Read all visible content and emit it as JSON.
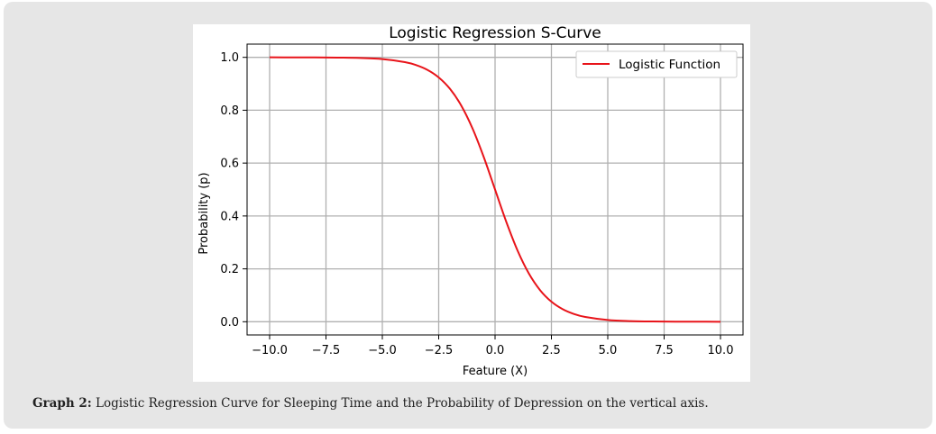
{
  "caption": {
    "label": "Graph 2:",
    "text": "Logistic Regression Curve for Sleeping Time and the Probability of Depression on the vertical axis."
  },
  "chart_data": {
    "type": "line",
    "title": "Logistic Regression S-Curve",
    "xlabel": "Feature (X)",
    "ylabel": "Probability (p)",
    "xlim": [
      -11,
      11
    ],
    "ylim": [
      -0.05,
      1.05
    ],
    "xticks": [
      -10.0,
      -7.5,
      -5.0,
      -2.5,
      0.0,
      2.5,
      5.0,
      7.5,
      10.0
    ],
    "xtick_labels": [
      "−10.0",
      "−7.5",
      "−5.0",
      "−2.5",
      "0.0",
      "2.5",
      "5.0",
      "7.5",
      "10.0"
    ],
    "yticks": [
      0.0,
      0.2,
      0.4,
      0.6,
      0.8,
      1.0
    ],
    "ytick_labels": [
      "0.0",
      "0.2",
      "0.4",
      "0.6",
      "0.8",
      "1.0"
    ],
    "grid": true,
    "legend": "top-right",
    "series": [
      {
        "name": "Logistic Function",
        "color": "#e8141a",
        "x": [
          -10,
          -9,
          -8,
          -7,
          -6,
          -5,
          -4,
          -3.5,
          -3,
          -2.5,
          -2,
          -1.5,
          -1,
          -0.5,
          0,
          0.5,
          1,
          1.5,
          2,
          2.5,
          3,
          3.5,
          4,
          5,
          6,
          7,
          8,
          9,
          10
        ],
        "y": [
          1.0,
          0.9999,
          0.9997,
          0.9991,
          0.9975,
          0.9933,
          0.982,
          0.9707,
          0.9526,
          0.9241,
          0.8808,
          0.8176,
          0.7311,
          0.6225,
          0.5,
          0.3775,
          0.2689,
          0.1824,
          0.1192,
          0.0759,
          0.0474,
          0.0293,
          0.018,
          0.0067,
          0.0025,
          0.0009,
          0.0003,
          0.0001,
          0.0
        ]
      }
    ]
  }
}
